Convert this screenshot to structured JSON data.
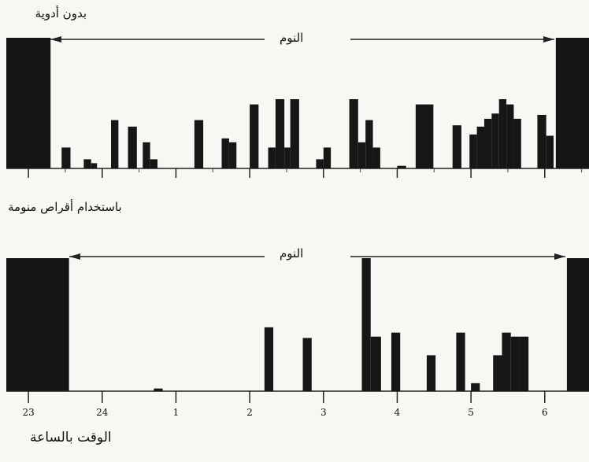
{
  "chart_data": [
    {
      "type": "bar",
      "title": "بدون أدوية",
      "annotation": "النوم",
      "x_unit": "hour of day",
      "xlim": [
        22.7,
        30.6
      ],
      "ylim": [
        0,
        1
      ],
      "awake_blocks": [
        [
          22.7,
          23.3
        ],
        [
          30.15,
          30.6
        ]
      ],
      "bars": [
        {
          "x": 23.45,
          "w": 0.12,
          "y": 0.16
        },
        {
          "x": 23.75,
          "w": 0.1,
          "y": 0.07
        },
        {
          "x": 23.85,
          "w": 0.08,
          "y": 0.04
        },
        {
          "x": 24.12,
          "w": 0.1,
          "y": 0.37
        },
        {
          "x": 24.35,
          "w": 0.12,
          "y": 0.32
        },
        {
          "x": 24.55,
          "w": 0.1,
          "y": 0.2
        },
        {
          "x": 24.65,
          "w": 0.1,
          "y": 0.07
        },
        {
          "x": 25.25,
          "w": 0.12,
          "y": 0.37
        },
        {
          "x": 25.62,
          "w": 0.1,
          "y": 0.23
        },
        {
          "x": 25.72,
          "w": 0.1,
          "y": 0.2
        },
        {
          "x": 26.0,
          "w": 0.12,
          "y": 0.49
        },
        {
          "x": 26.25,
          "w": 0.1,
          "y": 0.16
        },
        {
          "x": 26.35,
          "w": 0.12,
          "y": 0.53
        },
        {
          "x": 26.47,
          "w": 0.08,
          "y": 0.16
        },
        {
          "x": 26.55,
          "w": 0.12,
          "y": 0.53
        },
        {
          "x": 26.9,
          "w": 0.1,
          "y": 0.07
        },
        {
          "x": 27.0,
          "w": 0.1,
          "y": 0.16
        },
        {
          "x": 27.35,
          "w": 0.12,
          "y": 0.53
        },
        {
          "x": 27.47,
          "w": 0.1,
          "y": 0.2
        },
        {
          "x": 27.57,
          "w": 0.1,
          "y": 0.37
        },
        {
          "x": 27.67,
          "w": 0.1,
          "y": 0.16
        },
        {
          "x": 28.0,
          "w": 0.12,
          "y": 0.02
        },
        {
          "x": 28.25,
          "w": 0.24,
          "y": 0.49
        },
        {
          "x": 28.75,
          "w": 0.12,
          "y": 0.33
        },
        {
          "x": 28.98,
          "w": 0.1,
          "y": 0.26
        },
        {
          "x": 29.08,
          "w": 0.1,
          "y": 0.32
        },
        {
          "x": 29.18,
          "w": 0.1,
          "y": 0.38
        },
        {
          "x": 29.28,
          "w": 0.1,
          "y": 0.42
        },
        {
          "x": 29.38,
          "w": 0.1,
          "y": 0.53
        },
        {
          "x": 29.48,
          "w": 0.1,
          "y": 0.49
        },
        {
          "x": 29.58,
          "w": 0.1,
          "y": 0.38
        },
        {
          "x": 29.9,
          "w": 0.12,
          "y": 0.41
        },
        {
          "x": 30.02,
          "w": 0.1,
          "y": 0.25
        }
      ]
    },
    {
      "type": "bar",
      "title": "باستخدام أقراص منومة",
      "annotation": "النوم",
      "x_unit": "hour of day",
      "xlim": [
        22.7,
        30.6
      ],
      "ylim": [
        0,
        1
      ],
      "xlabel": "الوقت بالساعة",
      "xticks": [
        "23",
        "24",
        "1",
        "2",
        "3",
        "4",
        "5",
        "6"
      ],
      "xtick_values": [
        23,
        24,
        25,
        26,
        27,
        28,
        29,
        30
      ],
      "awake_blocks": [
        [
          22.7,
          23.55
        ],
        [
          30.3,
          30.6
        ]
      ],
      "bars": [
        {
          "x": 24.7,
          "w": 0.12,
          "y": 0.02
        },
        {
          "x": 26.2,
          "w": 0.12,
          "y": 0.48
        },
        {
          "x": 26.72,
          "w": 0.12,
          "y": 0.4
        },
        {
          "x": 27.52,
          "w": 0.12,
          "y": 1.0
        },
        {
          "x": 27.64,
          "w": 0.14,
          "y": 0.41
        },
        {
          "x": 27.92,
          "w": 0.12,
          "y": 0.44
        },
        {
          "x": 28.4,
          "w": 0.12,
          "y": 0.27
        },
        {
          "x": 28.8,
          "w": 0.12,
          "y": 0.44
        },
        {
          "x": 29.0,
          "w": 0.12,
          "y": 0.06
        },
        {
          "x": 29.3,
          "w": 0.12,
          "y": 0.27
        },
        {
          "x": 29.42,
          "w": 0.12,
          "y": 0.44
        },
        {
          "x": 29.54,
          "w": 0.12,
          "y": 0.41
        },
        {
          "x": 29.66,
          "w": 0.12,
          "y": 0.41
        }
      ]
    }
  ]
}
